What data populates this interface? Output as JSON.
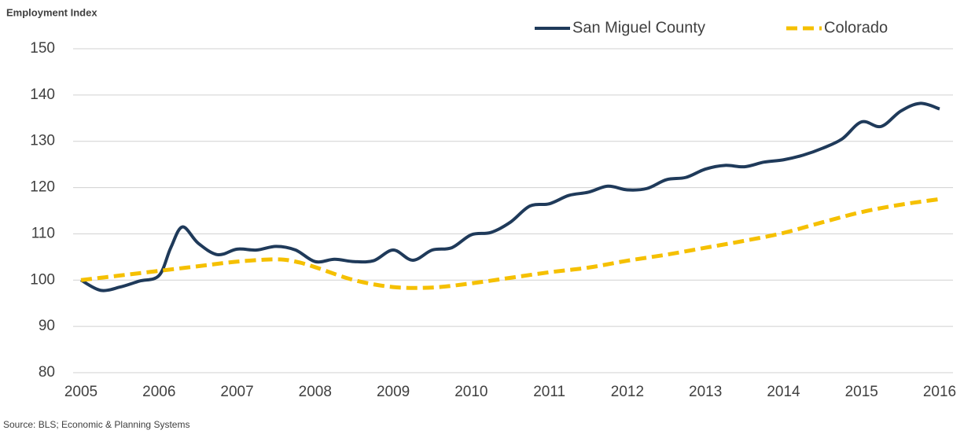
{
  "chart_data": {
    "type": "line",
    "y_axis_label": "Employment Index",
    "source": "Source: BLS; Economic & Planning Systems",
    "xlim": [
      2005,
      2016
    ],
    "xticks": [
      2005,
      2006,
      2007,
      2008,
      2009,
      2010,
      2011,
      2012,
      2013,
      2014,
      2015,
      2016
    ],
    "ylim": [
      80,
      150
    ],
    "yticks": [
      80,
      90,
      100,
      110,
      120,
      130,
      140,
      150
    ],
    "grid": true,
    "legend": "top",
    "series": [
      {
        "name": "San Miguel County",
        "color": "#1f3a5a",
        "style": "solid",
        "x": [
          2005,
          2005.25,
          2005.5,
          2005.75,
          2006,
          2006.15,
          2006.3,
          2006.5,
          2006.75,
          2007,
          2007.25,
          2007.5,
          2007.75,
          2008,
          2008.25,
          2008.5,
          2008.75,
          2009,
          2009.25,
          2009.5,
          2009.75,
          2010,
          2010.25,
          2010.5,
          2010.75,
          2011,
          2011.25,
          2011.5,
          2011.75,
          2012,
          2012.25,
          2012.5,
          2012.75,
          2013,
          2013.25,
          2013.5,
          2013.75,
          2014,
          2014.25,
          2014.5,
          2014.75,
          2015,
          2015.25,
          2015.5,
          2015.75,
          2016
        ],
        "values": [
          100,
          97.8,
          98.5,
          99.8,
          101,
          107,
          111.5,
          108,
          105.5,
          106.7,
          106.5,
          107.3,
          106.5,
          104,
          104.5,
          104,
          104.2,
          106.5,
          104.3,
          106.5,
          107,
          109.8,
          110.3,
          112.5,
          116,
          116.5,
          118.3,
          119,
          120.3,
          119.5,
          119.8,
          121.7,
          122.2,
          124,
          124.8,
          124.5,
          125.5,
          126,
          127,
          128.5,
          130.5,
          134.2,
          133.2,
          136.5,
          138.2,
          137
        ]
      },
      {
        "name": "Colorado",
        "color": "#f5c000",
        "style": "dashed",
        "x": [
          2005,
          2005.5,
          2006,
          2006.5,
          2007,
          2007.5,
          2007.75,
          2008,
          2008.5,
          2009,
          2009.5,
          2010,
          2010.5,
          2011,
          2011.5,
          2012,
          2012.5,
          2013,
          2013.5,
          2014,
          2014.5,
          2015,
          2015.5,
          2016
        ],
        "values": [
          100,
          101,
          102,
          103,
          104,
          104.5,
          104,
          102.8,
          100,
          98.5,
          98.4,
          99.3,
          100.5,
          101.7,
          102.7,
          104.2,
          105.5,
          107,
          108.5,
          110.2,
          112.5,
          114.7,
          116.3,
          117.5
        ]
      }
    ]
  }
}
